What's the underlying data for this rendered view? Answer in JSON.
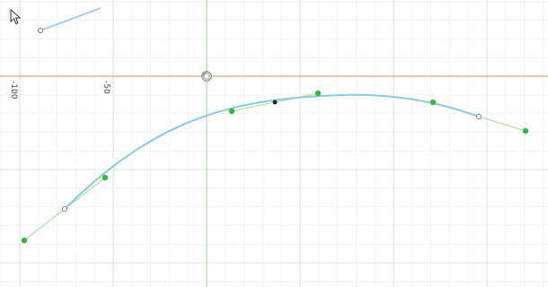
{
  "canvas": {
    "background": "#ffffff",
    "grid_minor_color": "#f1f1f1",
    "grid_major_color": "#e2e2e2",
    "x_axis_color": "#d2a79b",
    "y_axis_color": "#a8dca8"
  },
  "axis_labels": {
    "x_minus_100": "-100",
    "x_minus_50": "-50"
  },
  "spline": {
    "curve_color": "#8ec9dc",
    "handle_line_color": "#b4e2b0",
    "control_point_color": "#35b83f",
    "knot_color": "#8a8a8a",
    "selected_point_color": "#222222"
  },
  "tool_icons": {
    "origin_gizmo": "origin-gizmo-icon",
    "cursor": "mouse-pointer-icon"
  }
}
